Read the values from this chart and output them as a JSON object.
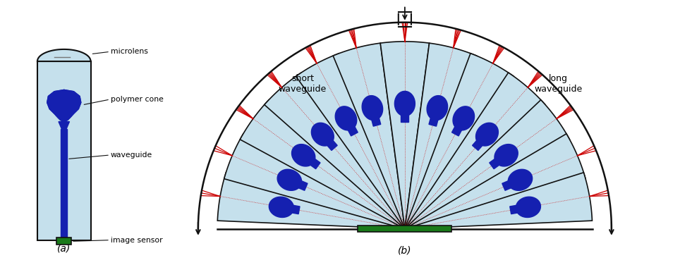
{
  "fig_width": 9.81,
  "fig_height": 3.76,
  "bg_color": "#ffffff",
  "light_blue": "#c5e0ec",
  "dark_blue": "#1520b0",
  "green": "#1a7a1a",
  "outline_color": "#111111",
  "red_line_color": "#cc0000",
  "label_a": "(a)",
  "label_b": "(b)",
  "labels": {
    "microlens": "microlens",
    "polymer_cone": "polymer cone",
    "waveguide": "waveguide",
    "image_sensor": "image sensor",
    "short_waveguide": "short\nwaveguide",
    "long_waveguide": "long\nwaveguide"
  },
  "num_waveguides": 13,
  "angles_deg": [
    -80,
    -67,
    -54,
    -41,
    -28,
    -15,
    0,
    15,
    28,
    41,
    54,
    67,
    80
  ]
}
